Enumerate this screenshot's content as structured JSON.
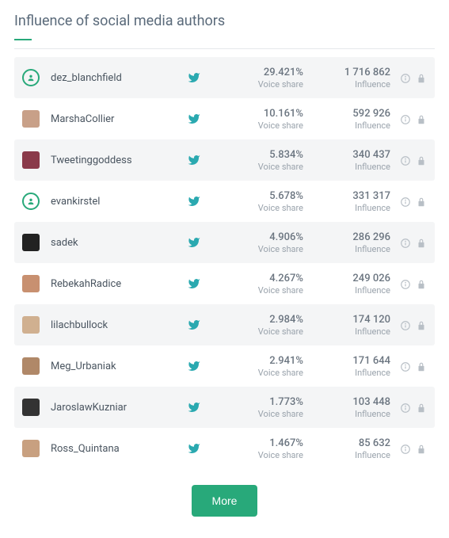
{
  "title": "Influence of social media authors",
  "voice_label": "Voice share",
  "influence_label": "Influence",
  "more_label": "More",
  "colors": {
    "accent": "#28a97a",
    "twitter": "#2aa9b0",
    "text_primary": "#5a6a7a",
    "text_value": "#6b7580",
    "text_muted": "#9aa3ac",
    "row_odd": "#f4f5f6",
    "row_even": "#ffffff",
    "icon_muted": "#b8bfc6"
  },
  "rows": [
    {
      "name": "dez_blanchfield",
      "voice": "29.421%",
      "influence": "1 716 862",
      "avatar": "outline"
    },
    {
      "name": "MarshaCollier",
      "voice": "10.161%",
      "influence": "592 926",
      "avatar": "v1"
    },
    {
      "name": "Tweetinggoddess",
      "voice": "5.834%",
      "influence": "340 437",
      "avatar": "v2"
    },
    {
      "name": "evankirstel",
      "voice": "5.678%",
      "influence": "331 317",
      "avatar": "outline"
    },
    {
      "name": "sadek",
      "voice": "4.906%",
      "influence": "286 296",
      "avatar": "v3"
    },
    {
      "name": "RebekahRadice",
      "voice": "4.267%",
      "influence": "249 026",
      "avatar": "v4"
    },
    {
      "name": "lilachbullock",
      "voice": "2.984%",
      "influence": "174 120",
      "avatar": "v5"
    },
    {
      "name": "Meg_Urbaniak",
      "voice": "2.941%",
      "influence": "171 644",
      "avatar": "v6"
    },
    {
      "name": "JaroslawKuzniar",
      "voice": "1.773%",
      "influence": "103 448",
      "avatar": "v7"
    },
    {
      "name": "Ross_Quintana",
      "voice": "1.467%",
      "influence": "85 632",
      "avatar": "v8"
    }
  ]
}
